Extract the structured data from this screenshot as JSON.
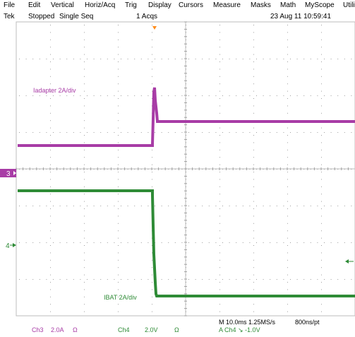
{
  "menu": [
    "File",
    "Edit",
    "Vertical",
    "Horiz/Acq",
    "Trig",
    "Display",
    "Cursors",
    "Measure",
    "Masks",
    "Math",
    "MyScope",
    "Utili"
  ],
  "status": {
    "brand": "Tek",
    "run_state": "Stopped",
    "mode": "Single Seq",
    "acqs": "1 Acqs",
    "datetime": "23 Aug 11 10:59:41"
  },
  "channels": {
    "ch3_label": "Iadapter 2A/div",
    "ch4_label": "IBAT 2A/div",
    "ch3_marker": "3",
    "ch4_marker": "4",
    "ch3_color": "#a83ca6",
    "ch4_color": "#2e8b36"
  },
  "footer": {
    "ch3_name": "Ch3",
    "ch3_scale": "2.0A",
    "ch3_unit": "Ω",
    "ch4_name": "Ch4",
    "ch4_scale": "2.0V",
    "ch4_unit": "Ω",
    "timebase": "M 10.0ms 1.25MS/s",
    "record": "800ns/pt",
    "trigger": "A  Ch4  ↘  -1.0V"
  }
}
